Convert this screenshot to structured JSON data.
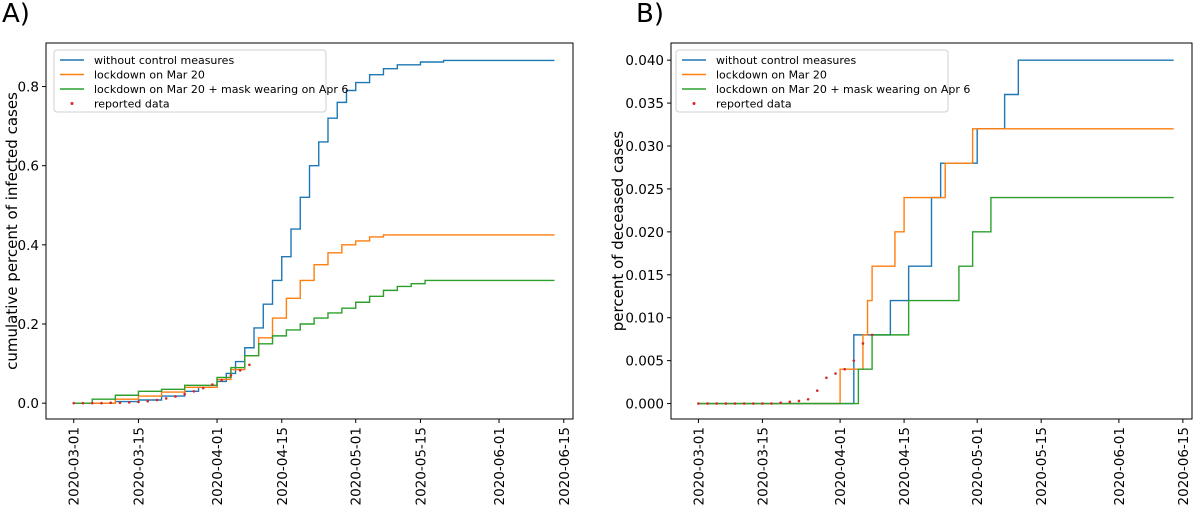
{
  "figure": {
    "panels": [
      "A)",
      "B)"
    ]
  },
  "legend": {
    "items": [
      {
        "label": "without control measures",
        "color": "#1f77b4",
        "kind": "line"
      },
      {
        "label": "lockdown on Mar 20",
        "color": "#ff7f0e",
        "kind": "line"
      },
      {
        "label": "lockdown on Mar 20 + mask wearing on Apr 6",
        "color": "#2ca02c",
        "kind": "line"
      },
      {
        "label": "reported data",
        "color": "#d62728",
        "kind": "dot"
      }
    ]
  },
  "chart_data": [
    {
      "type": "line",
      "panel": "A)",
      "ylabel": "cumulative percent of infected cases",
      "xlabel": "",
      "xlim": [
        "2020-02-24",
        "2020-06-17"
      ],
      "ylim": [
        -0.04,
        0.91
      ],
      "x_ticks": [
        "2020-03-01",
        "2020-03-15",
        "2020-04-01",
        "2020-04-15",
        "2020-05-01",
        "2020-05-15",
        "2020-06-01",
        "2020-06-15"
      ],
      "y_ticks": [
        0.0,
        0.2,
        0.4,
        0.6,
        0.8
      ],
      "y_tick_labels": [
        "0.0",
        "0.2",
        "0.4",
        "0.6",
        "0.8"
      ],
      "legend_position": "top-left",
      "series": [
        {
          "name": "without control measures",
          "color": "#1f77b4",
          "style": "step",
          "x": [
            "2020-03-01",
            "2020-03-10",
            "2020-03-15",
            "2020-03-20",
            "2020-03-25",
            "2020-03-28",
            "2020-04-01",
            "2020-04-03",
            "2020-04-05",
            "2020-04-07",
            "2020-04-09",
            "2020-04-11",
            "2020-04-13",
            "2020-04-15",
            "2020-04-17",
            "2020-04-19",
            "2020-04-21",
            "2020-04-23",
            "2020-04-25",
            "2020-04-27",
            "2020-04-29",
            "2020-05-01",
            "2020-05-04",
            "2020-05-07",
            "2020-05-10",
            "2020-05-15",
            "2020-05-20",
            "2020-06-13"
          ],
          "y": [
            0.0,
            0.004,
            0.008,
            0.018,
            0.03,
            0.04,
            0.055,
            0.075,
            0.105,
            0.14,
            0.19,
            0.25,
            0.31,
            0.37,
            0.44,
            0.52,
            0.6,
            0.66,
            0.72,
            0.76,
            0.79,
            0.81,
            0.83,
            0.845,
            0.855,
            0.862,
            0.866,
            0.866
          ]
        },
        {
          "name": "lockdown on Mar 20",
          "color": "#ff7f0e",
          "style": "step",
          "x": [
            "2020-03-01",
            "2020-03-10",
            "2020-03-15",
            "2020-03-20",
            "2020-03-25",
            "2020-04-01",
            "2020-04-04",
            "2020-04-07",
            "2020-04-10",
            "2020-04-13",
            "2020-04-16",
            "2020-04-19",
            "2020-04-22",
            "2020-04-25",
            "2020-04-28",
            "2020-05-01",
            "2020-05-04",
            "2020-05-07",
            "2020-06-13"
          ],
          "y": [
            0.0,
            0.01,
            0.018,
            0.028,
            0.04,
            0.06,
            0.085,
            0.12,
            0.165,
            0.215,
            0.265,
            0.31,
            0.35,
            0.38,
            0.4,
            0.41,
            0.42,
            0.425,
            0.425
          ]
        },
        {
          "name": "lockdown on Mar 20 + mask wearing on Apr 6",
          "color": "#2ca02c",
          "style": "step",
          "x": [
            "2020-03-01",
            "2020-03-05",
            "2020-03-10",
            "2020-03-15",
            "2020-03-20",
            "2020-03-25",
            "2020-04-01",
            "2020-04-04",
            "2020-04-07",
            "2020-04-10",
            "2020-04-13",
            "2020-04-16",
            "2020-04-19",
            "2020-04-22",
            "2020-04-25",
            "2020-04-28",
            "2020-05-01",
            "2020-05-04",
            "2020-05-07",
            "2020-05-10",
            "2020-05-13",
            "2020-05-16",
            "2020-06-13"
          ],
          "y": [
            0.0,
            0.01,
            0.02,
            0.03,
            0.035,
            0.045,
            0.065,
            0.09,
            0.12,
            0.15,
            0.17,
            0.185,
            0.2,
            0.215,
            0.228,
            0.24,
            0.255,
            0.27,
            0.285,
            0.295,
            0.302,
            0.31,
            0.31
          ]
        },
        {
          "name": "reported data",
          "color": "#d62728",
          "style": "dots",
          "x": [
            "2020-03-01",
            "2020-03-03",
            "2020-03-05",
            "2020-03-07",
            "2020-03-09",
            "2020-03-11",
            "2020-03-13",
            "2020-03-15",
            "2020-03-17",
            "2020-03-19",
            "2020-03-21",
            "2020-03-23",
            "2020-03-25",
            "2020-03-27",
            "2020-03-29",
            "2020-03-31",
            "2020-04-02",
            "2020-04-04",
            "2020-04-06",
            "2020-04-08"
          ],
          "y": [
            0.0,
            0.0,
            0.0,
            0.0,
            0.001,
            0.001,
            0.002,
            0.003,
            0.005,
            0.008,
            0.012,
            0.017,
            0.023,
            0.03,
            0.038,
            0.047,
            0.058,
            0.07,
            0.083,
            0.097
          ]
        }
      ]
    },
    {
      "type": "line",
      "panel": "B)",
      "ylabel": "percent of deceased cases",
      "xlabel": "",
      "xlim": [
        "2020-02-24",
        "2020-06-17"
      ],
      "ylim": [
        -0.0018,
        0.042
      ],
      "x_ticks": [
        "2020-03-01",
        "2020-03-15",
        "2020-04-01",
        "2020-04-15",
        "2020-05-01",
        "2020-05-15",
        "2020-06-01",
        "2020-06-15"
      ],
      "y_ticks": [
        0.0,
        0.005,
        0.01,
        0.015,
        0.02,
        0.025,
        0.03,
        0.035,
        0.04
      ],
      "y_tick_labels": [
        "0.000",
        "0.005",
        "0.010",
        "0.015",
        "0.020",
        "0.025",
        "0.030",
        "0.035",
        "0.040"
      ],
      "legend_position": "top-left",
      "series": [
        {
          "name": "without control measures",
          "color": "#1f77b4",
          "style": "step",
          "x": [
            "2020-03-01",
            "2020-04-04",
            "2020-04-08",
            "2020-04-12",
            "2020-04-16",
            "2020-04-21",
            "2020-04-23",
            "2020-05-01",
            "2020-05-07",
            "2020-05-10",
            "2020-06-13"
          ],
          "y": [
            0.0,
            0.008,
            0.008,
            0.012,
            0.016,
            0.024,
            0.028,
            0.032,
            0.036,
            0.04,
            0.04
          ]
        },
        {
          "name": "lockdown on Mar 20",
          "color": "#ff7f0e",
          "style": "step",
          "x": [
            "2020-03-01",
            "2020-04-01",
            "2020-04-06",
            "2020-04-07",
            "2020-04-08",
            "2020-04-13",
            "2020-04-15",
            "2020-04-24",
            "2020-04-30",
            "2020-06-13"
          ],
          "y": [
            0.0,
            0.004,
            0.008,
            0.012,
            0.016,
            0.02,
            0.024,
            0.028,
            0.032,
            0.032
          ]
        },
        {
          "name": "lockdown on Mar 20 + mask wearing on Apr 6",
          "color": "#2ca02c",
          "style": "step",
          "x": [
            "2020-03-01",
            "2020-04-05",
            "2020-04-08",
            "2020-04-14",
            "2020-04-16",
            "2020-04-27",
            "2020-04-30",
            "2020-05-04",
            "2020-06-13"
          ],
          "y": [
            0.0,
            0.004,
            0.008,
            0.008,
            0.012,
            0.016,
            0.02,
            0.024,
            0.024
          ]
        },
        {
          "name": "reported data",
          "color": "#d62728",
          "style": "dots",
          "x": [
            "2020-03-01",
            "2020-03-03",
            "2020-03-05",
            "2020-03-07",
            "2020-03-09",
            "2020-03-11",
            "2020-03-13",
            "2020-03-15",
            "2020-03-17",
            "2020-03-19",
            "2020-03-21",
            "2020-03-23",
            "2020-03-25",
            "2020-03-27",
            "2020-03-29",
            "2020-03-31",
            "2020-04-02",
            "2020-04-04",
            "2020-04-06",
            "2020-04-08"
          ],
          "y": [
            0.0,
            0.0,
            0.0,
            0.0,
            0.0,
            0.0,
            0.0,
            0.0,
            0.0,
            0.0001,
            0.0002,
            0.0003,
            0.0005,
            0.0015,
            0.003,
            0.0035,
            0.004,
            0.005,
            0.007,
            0.008
          ]
        }
      ]
    }
  ]
}
